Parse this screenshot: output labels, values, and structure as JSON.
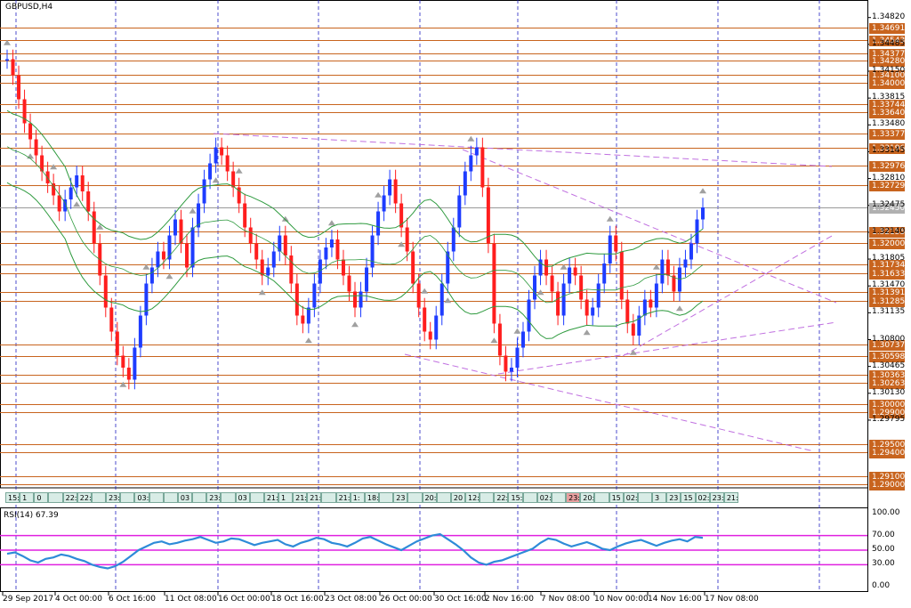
{
  "chart_data": [
    {
      "type": "candlestick",
      "symbol_label": "GBPUSD,H4",
      "price_axis_ticks": [
        "1.34820",
        "1.34485",
        "1.34150",
        "1.33815",
        "1.33480",
        "1.33145",
        "1.32810",
        "1.32475",
        "1.32140",
        "1.31805",
        "1.31470",
        "1.31135",
        "1.30800",
        "1.30465",
        "1.30130",
        "1.29795"
      ],
      "price_level_tags": [
        "1.34691",
        "1.34543",
        "1.34377",
        "1.34280",
        "1.34100",
        "1.34000",
        "1.33744",
        "1.33640",
        "1.33377",
        "1.33196",
        "1.32976",
        "1.32729",
        "1.32155",
        "1.32000",
        "1.31734",
        "1.31633",
        "1.31391",
        "1.31285",
        "1.30737",
        "1.30598",
        "1.30363",
        "1.30263",
        "1.30000",
        "1.29900",
        "1.29500",
        "1.29400",
        "1.29100",
        "1.29000"
      ],
      "current_price": "1.32450",
      "x_ticks": [
        "29 Sep 2017",
        "4 Oct 00:00",
        "6 Oct 16:00",
        "11 Oct 08:00",
        "16 Oct 00:00",
        "18 Oct 16:00",
        "23 Oct 08:00",
        "26 Oct 00:00",
        "30 Oct 16:00",
        "2 Nov 16:00",
        "7 Nov 08:00",
        "10 Nov 00:00",
        "14 Nov 16:00",
        "17 Nov 08:00"
      ],
      "time_boxes": [
        "15:0",
        "1",
        "0",
        "",
        "22:45",
        "22:0",
        "",
        "23:3",
        "",
        "03:00",
        "",
        "",
        "03",
        "",
        "23:15:30",
        "",
        "03",
        "",
        "21:",
        "1",
        "21:00",
        "21:00",
        "",
        "21:00",
        "1:",
        "18:3",
        "",
        "23",
        "",
        "20:",
        "",
        "20",
        "12:30",
        "",
        "22:",
        "15:30",
        "",
        "02:00",
        "",
        "23:30",
        "20:",
        "",
        "15",
        "02:01",
        "",
        "3",
        "23",
        "15",
        "02:",
        "23:45",
        "21:30"
      ],
      "close_path": [
        1.343,
        1.341,
        1.338,
        1.335,
        1.333,
        1.331,
        1.329,
        1.3275,
        1.326,
        1.324,
        1.3255,
        1.327,
        1.3285,
        1.3265,
        1.324,
        1.32,
        1.316,
        1.312,
        1.309,
        1.306,
        1.3045,
        1.303,
        1.307,
        1.311,
        1.315,
        1.317,
        1.319,
        1.318,
        1.321,
        1.323,
        1.32,
        1.317,
        1.322,
        1.325,
        1.328,
        1.33,
        1.332,
        1.331,
        1.329,
        1.327,
        1.325,
        1.322,
        1.32,
        1.318,
        1.316,
        1.317,
        1.319,
        1.321,
        1.3185,
        1.315,
        1.311,
        1.31,
        1.312,
        1.315,
        1.318,
        1.3195,
        1.3205,
        1.318,
        1.316,
        1.314,
        1.312,
        1.314,
        1.317,
        1.321,
        1.324,
        1.326,
        1.328,
        1.325,
        1.322,
        1.319,
        1.315,
        1.312,
        1.309,
        1.308,
        1.311,
        1.315,
        1.319,
        1.322,
        1.326,
        1.329,
        1.331,
        1.332,
        1.327,
        1.32,
        1.31,
        1.306,
        1.304,
        1.3045,
        1.307,
        1.309,
        1.313,
        1.316,
        1.318,
        1.316,
        1.314,
        1.311,
        1.315,
        1.317,
        1.316,
        1.313,
        1.311,
        1.312,
        1.315,
        1.3175,
        1.321,
        1.319,
        1.313,
        1.31,
        1.3085,
        1.311,
        1.313,
        1.312,
        1.315,
        1.318,
        1.316,
        1.314,
        1.317,
        1.318,
        1.32,
        1.323,
        1.3245
      ],
      "rsi": {
        "label": "RSI(14) 67.39",
        "ticks": [
          "100.00",
          "70.00",
          "50.00",
          "30.00",
          "0.00"
        ],
        "levels": [
          70,
          50,
          30
        ],
        "values": [
          45,
          47,
          42,
          36,
          33,
          38,
          40,
          44,
          42,
          38,
          35,
          30,
          27,
          25,
          28,
          34,
          42,
          50,
          55,
          60,
          62,
          58,
          60,
          63,
          65,
          68,
          64,
          60,
          62,
          66,
          65,
          61,
          57,
          60,
          62,
          64,
          58,
          55,
          60,
          63,
          67,
          65,
          60,
          58,
          55,
          60,
          66,
          68,
          63,
          58,
          54,
          50,
          56,
          62,
          66,
          70,
          72,
          65,
          58,
          50,
          40,
          33,
          30,
          34,
          36,
          40,
          44,
          48,
          52,
          60,
          66,
          64,
          59,
          55,
          58,
          61,
          57,
          52,
          50,
          55,
          59,
          62,
          64,
          60,
          56,
          60,
          63,
          65,
          62,
          68,
          67
        ]
      },
      "colors": {
        "up_candle": "#1e3cff",
        "down_candle": "#ff1e1e",
        "bollinger": "#2e9a3e",
        "trendline": "#c070e0",
        "level_line": "#c8641e",
        "grid_vertical": "#2020c0",
        "rsi_line": "#2e8bd8",
        "rsi_level": "#e020e0"
      }
    }
  ]
}
